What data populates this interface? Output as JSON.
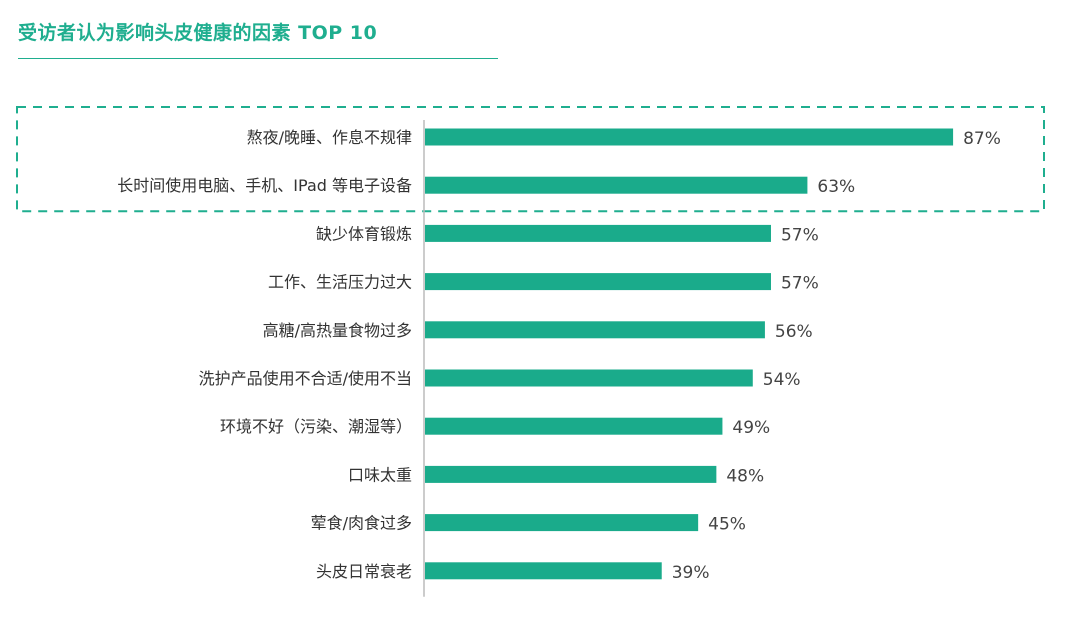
{
  "title": "受访者认为影响头皮健康的因素 TOP 10",
  "colors": {
    "accent": "#1fae8f",
    "bar": "#1aab8b",
    "axis": "#bbbbbb"
  },
  "chart_data": {
    "type": "bar",
    "orientation": "horizontal",
    "categories": [
      "熬夜/晚睡、作息不规律",
      "长时间使用电脑、手机、IPad 等电子设备",
      "缺少体育锻炼",
      "工作、生活压力过大",
      "高糖/高热量食物过多",
      "洗护产品使用不合适/使用不当",
      "环境不好（污染、潮湿等）",
      "口味太重",
      "荤食/肉食过多",
      "头皮日常衰老"
    ],
    "values": [
      87,
      63,
      57,
      57,
      56,
      54,
      49,
      48,
      45,
      39
    ],
    "value_labels": [
      "87%",
      "63%",
      "57%",
      "57%",
      "56%",
      "54%",
      "49%",
      "48%",
      "45%",
      "39%"
    ],
    "unit": "%",
    "xlim": [
      0,
      100
    ],
    "highlighted_categories": [
      0,
      1
    ],
    "grid": false,
    "legend": "none"
  }
}
